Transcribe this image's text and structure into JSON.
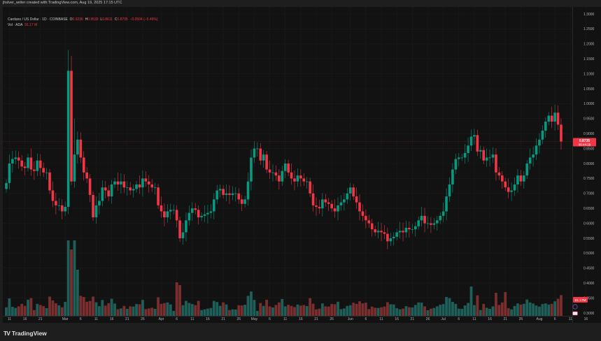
{
  "header": {
    "credit": "jhslver_writer created with TradingView.com, Aug 19, 2025 17:15 UTC"
  },
  "legend": {
    "symbol": "Cardano / US Dollar · 1D · COINBASE",
    "open_label": "O",
    "open": "0.9236",
    "high_label": "H",
    "high": "0.9539",
    "low_label": "L",
    "low": "0.8611",
    "close_label": "C",
    "close": "0.8735",
    "change": "−0.0504 (−5.46%)",
    "vol_label": "Vol · ADA",
    "vol_value": "91.17 M"
  },
  "price_badge": {
    "price": "0.8735",
    "countdown": "06:44:28"
  },
  "volume_badge": "91.17M",
  "footer": {
    "brand": "TradingView",
    "logo": "TV"
  },
  "colors": {
    "up": "#089981",
    "down": "#f23645",
    "vol_up": "#1f5f59",
    "vol_down": "#7a2e2e",
    "bg": "#121212",
    "grid": "#1c1c1c",
    "axis_text": "#b2b5be"
  },
  "chart_data": {
    "type": "candlestick",
    "title": "Cardano / US Dollar · 1D · COINBASE",
    "xlabel": "",
    "ylabel": "Price (USD)",
    "ylim": [
      0.28,
      1.32
    ],
    "grid": true,
    "y_ticks": [
      "1.3000",
      "1.2500",
      "1.2000",
      "1.1500",
      "1.1000",
      "1.0500",
      "1.0000",
      "0.9500",
      "0.9000",
      "0.8500",
      "0.8000",
      "0.7500",
      "0.7000",
      "0.6500",
      "0.6000",
      "0.5500",
      "0.5000",
      "0.4500",
      "0.4000",
      "0.3500",
      "0.3000"
    ],
    "x_ticks": [
      {
        "label": "11",
        "i": 1
      },
      {
        "label": "16",
        "i": 6
      },
      {
        "label": "21",
        "i": 11
      },
      {
        "label": "Mar",
        "i": 19
      },
      {
        "label": "6",
        "i": 24
      },
      {
        "label": "11",
        "i": 29
      },
      {
        "label": "16",
        "i": 34
      },
      {
        "label": "21",
        "i": 39
      },
      {
        "label": "26",
        "i": 44
      },
      {
        "label": "Apr",
        "i": 50
      },
      {
        "label": "6",
        "i": 55
      },
      {
        "label": "11",
        "i": 60
      },
      {
        "label": "16",
        "i": 65
      },
      {
        "label": "21",
        "i": 70
      },
      {
        "label": "26",
        "i": 75
      },
      {
        "label": "May",
        "i": 80
      },
      {
        "label": "6",
        "i": 85
      },
      {
        "label": "11",
        "i": 90
      },
      {
        "label": "16",
        "i": 95
      },
      {
        "label": "21",
        "i": 100
      },
      {
        "label": "26",
        "i": 105
      },
      {
        "label": "Jun",
        "i": 111
      },
      {
        "label": "6",
        "i": 116
      },
      {
        "label": "11",
        "i": 121
      },
      {
        "label": "16",
        "i": 126
      },
      {
        "label": "21",
        "i": 131
      },
      {
        "label": "26",
        "i": 136
      },
      {
        "label": "Jul",
        "i": 141
      },
      {
        "label": "6",
        "i": 146
      },
      {
        "label": "11",
        "i": 151
      },
      {
        "label": "16",
        "i": 156
      },
      {
        "label": "21",
        "i": 161
      },
      {
        "label": "26",
        "i": 166
      },
      {
        "label": "Aug",
        "i": 172
      },
      {
        "label": "6",
        "i": 177
      },
      {
        "label": "11",
        "i": 182
      },
      {
        "label": "16",
        "i": 187
      }
    ],
    "last_price": 0.8735,
    "close": [
      0.735,
      0.8,
      0.815,
      0.82,
      0.81,
      0.79,
      0.785,
      0.82,
      0.78,
      0.775,
      0.81,
      0.785,
      0.77,
      0.77,
      0.71,
      0.675,
      0.66,
      0.66,
      0.64,
      0.655,
      1.11,
      0.74,
      0.83,
      0.88,
      0.82,
      0.77,
      0.75,
      0.695,
      0.62,
      0.66,
      0.675,
      0.72,
      0.71,
      0.69,
      0.73,
      0.74,
      0.73,
      0.74,
      0.72,
      0.72,
      0.71,
      0.715,
      0.73,
      0.72,
      0.75,
      0.74,
      0.73,
      0.72,
      0.72,
      0.66,
      0.64,
      0.62,
      0.64,
      0.645,
      0.645,
      0.61,
      0.55,
      0.57,
      0.61,
      0.635,
      0.65,
      0.645,
      0.62,
      0.625,
      0.63,
      0.635,
      0.64,
      0.68,
      0.71,
      0.715,
      0.695,
      0.7,
      0.695,
      0.7,
      0.7,
      0.68,
      0.665,
      0.68,
      0.74,
      0.82,
      0.85,
      0.85,
      0.81,
      0.83,
      0.78,
      0.77,
      0.77,
      0.76,
      0.74,
      0.775,
      0.8,
      0.77,
      0.75,
      0.74,
      0.76,
      0.75,
      0.74,
      0.74,
      0.7,
      0.66,
      0.655,
      0.65,
      0.68,
      0.67,
      0.665,
      0.65,
      0.64,
      0.66,
      0.67,
      0.68,
      0.7,
      0.72,
      0.69,
      0.67,
      0.64,
      0.625,
      0.61,
      0.6,
      0.58,
      0.57,
      0.575,
      0.57,
      0.565,
      0.54,
      0.55,
      0.555,
      0.57,
      0.575,
      0.57,
      0.585,
      0.58,
      0.58,
      0.59,
      0.61,
      0.625,
      0.6,
      0.6,
      0.595,
      0.6,
      0.61,
      0.625,
      0.64,
      0.69,
      0.73,
      0.78,
      0.815,
      0.82,
      0.82,
      0.835,
      0.86,
      0.89,
      0.895,
      0.84,
      0.845,
      0.81,
      0.82,
      0.82,
      0.83,
      0.77,
      0.76,
      0.74,
      0.72,
      0.705,
      0.71,
      0.73,
      0.76,
      0.74,
      0.76,
      0.8,
      0.82,
      0.83,
      0.86,
      0.88,
      0.91,
      0.94,
      0.96,
      0.94,
      0.97,
      0.93,
      0.8735
    ]
  }
}
